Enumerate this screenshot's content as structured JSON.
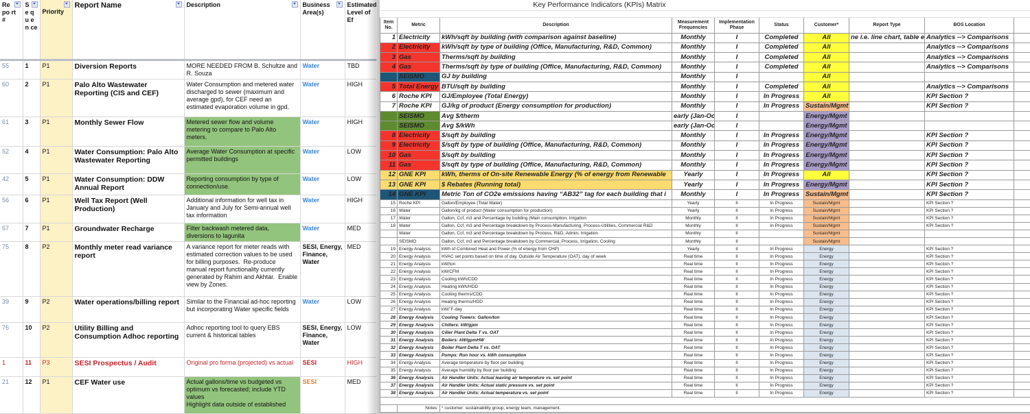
{
  "left": {
    "headers": [
      "Re po rt #",
      "S e q u e n ce",
      "Priority",
      "Report Name",
      "Description",
      "Business Area(s)",
      "Estimated Level of Ef"
    ],
    "rows": [
      {
        "num": "55",
        "seq": "1",
        "priority": "P1",
        "name": "Diversion Reports",
        "desc": "MORE NEEDED FROM B. Schultze and R. Souza",
        "biz": "Water",
        "effort": "TBD",
        "green": false,
        "red": false,
        "bizBold": false
      },
      {
        "num": "60",
        "seq": "2",
        "priority": "P1",
        "name": "Palo Alto Wastewater Reporting (CIS and CEF)",
        "desc": "Water Consumption and metered water discharged to sewer (maximum and average gpd), for CEF need an estimated evaporation volume in gpd.",
        "biz": "Water",
        "effort": "HIGH",
        "green": false,
        "red": false,
        "bizBold": false
      },
      {
        "num": "61",
        "seq": "3",
        "priority": "P1",
        "name": "Monthly Sewer Flow",
        "desc": "Metered sewer flow and volume metering to compare to Palo Alto meters.",
        "biz": "Water",
        "effort": "HIGH",
        "green": true,
        "red": false,
        "bizBold": false
      },
      {
        "num": "52",
        "seq": "4",
        "priority": "P1",
        "name": "Water Consumption: Palo Alto Wastewater Reporting",
        "desc": "Average Water Consumption at specific permitted buildings",
        "biz": "Water",
        "effort": "LOW",
        "green": true,
        "red": false,
        "bizBold": false
      },
      {
        "num": "42",
        "seq": "5",
        "priority": "P1",
        "name": "Water Consumption: DDW Annual Report",
        "desc": "Reporting consumption by type of connection/use.",
        "biz": "Water",
        "effort": "LOW",
        "green": true,
        "red": false,
        "bizBold": false
      },
      {
        "num": "56",
        "seq": "6",
        "priority": "P1",
        "name": "Well Tax Report (Well Production)",
        "desc": "Additional information for well tax in January and July for Semi-annual well tax information",
        "biz": "Water",
        "effort": "HIGH",
        "green": false,
        "red": false,
        "bizBold": false
      },
      {
        "num": "57",
        "seq": "7",
        "priority": "P1",
        "name": "Groundwater Recharge",
        "desc": "Filter backwash metered data, diversions to lagunita",
        "biz": "Water",
        "effort": "MED",
        "green": true,
        "red": false,
        "bizBold": false
      },
      {
        "num": "75",
        "seq": "8",
        "priority": "P2",
        "name": "Monthly meter read variance report",
        "desc": "A variance report for meter reads with estimated correction values to be used for billing purposes.  Re-produce manual report functionality currently generated by Rahim and Akhtar.  Enable view by Zones.",
        "biz": "SESI, Energy, Finance, Water",
        "effort": "MED",
        "green": false,
        "red": false,
        "bizBold": true
      },
      {
        "num": "39",
        "seq": "9",
        "priority": "P2",
        "name": "Water operations/billing report",
        "desc": "Similar to the Financial ad-hoc reporting but incorporating Water specific fields",
        "biz": "Water",
        "effort": "LOW",
        "green": false,
        "red": false,
        "bizBold": false
      },
      {
        "num": "76",
        "seq": "10",
        "priority": "P2",
        "name": "Utility Billing and Consumption Adhoc reporting",
        "desc": "Adhoc reporting tool to query EBS current & historical tables",
        "biz": "SESI, Energy, Finance, Water",
        "effort": "LOW",
        "green": false,
        "red": false,
        "bizBold": true
      },
      {
        "num": "1",
        "seq": "11",
        "priority": "P3",
        "name": "SESI Prospectus / Audit",
        "desc": "Original pro forma (projected) vs actual",
        "biz": "SESI",
        "effort": "HIGH",
        "green": false,
        "red": true,
        "bizBold": false
      },
      {
        "num": "21",
        "seq": "12",
        "priority": "P1",
        "name": "CEF Water use",
        "desc": "Actual gallons/time vs budgeted vs optimum vs forecasted; include YTD values\nHighlight data outside of established",
        "biz": "SESI",
        "effort": "MED",
        "green": true,
        "red": false,
        "bizBold": false,
        "bizColor": "#f07a2a"
      }
    ]
  },
  "right": {
    "title": "Key Performance Indicators (KPIs) Matrix",
    "headers": [
      "Item No.",
      "Metric",
      "Description",
      "Measurement Frequencies",
      "Implementation Phase",
      "Status",
      "Customer*",
      "Report Type",
      "BOS Location"
    ],
    "colors": {
      "red": "#f4352d",
      "teal": "#1e5677",
      "green": "#5f8b30",
      "yellow": "#fcdc70",
      "All": "#ffff3c",
      "Sustain/Mgmt": "#f8bd8c",
      "Energy/Mgmt": "#a89bc7",
      "Energy": "#dbe5f0"
    },
    "rows": [
      {
        "no": "1",
        "metric": "Electricity",
        "desc": "kWh/sqft  by building (with comparison against baseline)",
        "freq": "Monthly",
        "phase": "I",
        "status": "Completed",
        "customer": "All",
        "rtype": "ne i.e. line chart, table e",
        "bos": "Analytics --> Comparisons",
        "fill": "",
        "size": "big"
      },
      {
        "no": "2",
        "metric": "Electricity",
        "desc": "kWh/sqft by type of building (Office, Manufacturing, R&D, Common)",
        "freq": "Monthly",
        "phase": "I",
        "status": "Completed",
        "customer": "All",
        "rtype": "",
        "bos": "Analytics --> Comparisons",
        "fill": "red",
        "size": "big"
      },
      {
        "no": "3",
        "metric": "Gas",
        "desc": "Therms/sqft by building",
        "freq": "Monthly",
        "phase": "I",
        "status": "Completed",
        "customer": "All",
        "rtype": "",
        "bos": "Analytics --> Comparisons",
        "fill": "red",
        "size": "big"
      },
      {
        "no": "4",
        "metric": "Gas",
        "desc": "Therms/sqft by type of building  (Office, Manufacturing, R&D, Common)",
        "freq": "Monthly",
        "phase": "I",
        "status": "Completed",
        "customer": "All",
        "rtype": "",
        "bos": "Analytics --> Comparisons",
        "fill": "red",
        "size": "big"
      },
      {
        "no": "",
        "metric": "SEISMO",
        "desc": "GJ by building",
        "freq": "Monthly",
        "phase": "I",
        "status": "",
        "customer": "All",
        "rtype": "",
        "bos": "",
        "fill": "teal",
        "size": "big"
      },
      {
        "no": "5",
        "metric": "Total Energy",
        "desc": "BTU/sqft by building",
        "freq": "Monthly",
        "phase": "I",
        "status": "Completed",
        "customer": "All",
        "rtype": "",
        "bos": "Analytics --> Comparisons",
        "fill": "red",
        "size": "big"
      },
      {
        "no": "6",
        "metric": "Roche KPI",
        "desc": "GJ/Employee (Total Energy)",
        "freq": "Monthly",
        "phase": "I",
        "status": "In Progress",
        "customer": "All",
        "rtype": "",
        "bos": "KPI Section ?",
        "fill": "",
        "size": "big"
      },
      {
        "no": "7",
        "metric": "Roche KPI",
        "desc": "GJ/kg of product (Energy consumption for production)",
        "freq": "Monthly",
        "phase": "I",
        "status": "In Progress",
        "customer": "Sustain/Mgmt",
        "rtype": "",
        "bos": "KPI Section ?",
        "fill": "",
        "size": "big"
      },
      {
        "no": "",
        "metric": "SEISMO",
        "desc": "Avg $/therm",
        "freq": "early (Jan-Oc",
        "phase": "I",
        "status": "",
        "customer": "Energy/Mgmt",
        "rtype": "",
        "bos": "",
        "fill": "green",
        "size": "big"
      },
      {
        "no": "",
        "metric": "SEISMO",
        "desc": "Avg $/kWh",
        "freq": "early (Jan-Oc",
        "phase": "I",
        "status": "",
        "customer": "Energy/Mgmt",
        "rtype": "",
        "bos": "",
        "fill": "green",
        "size": "big"
      },
      {
        "no": "8",
        "metric": "Electricity",
        "desc": "$/sqft by building",
        "freq": "Monthly",
        "phase": "I",
        "status": "In Progress",
        "customer": "Energy/Mgmt",
        "rtype": "",
        "bos": "KPI Section ?",
        "fill": "red",
        "size": "big"
      },
      {
        "no": "9",
        "metric": "Electricity",
        "desc": "$/sqft by type of building  (Office, Manufacturing, R&D, Common)",
        "freq": "Monthly",
        "phase": "I",
        "status": "In Progress",
        "customer": "Energy/Mgmt",
        "rtype": "",
        "bos": "KPI Section ?",
        "fill": "red",
        "size": "big"
      },
      {
        "no": "10",
        "metric": "Gas",
        "desc": "$/sqft by building",
        "freq": "Monthly",
        "phase": "I",
        "status": "In Progress",
        "customer": "Energy/Mgmt",
        "rtype": "",
        "bos": "KPI Section ?",
        "fill": "red",
        "size": "big"
      },
      {
        "no": "11",
        "metric": "Gas",
        "desc": "$/sqft by type of building  (Office, Manufacturing, R&D, Common)",
        "freq": "Monthly",
        "phase": "I",
        "status": "In Progress",
        "customer": "Energy/Mgmt",
        "rtype": "",
        "bos": "KPI Section ?",
        "fill": "red",
        "size": "big"
      },
      {
        "no": "12",
        "metric": "GNE KPI",
        "desc": "kWh, therms  of On-site Renewable Energy (% of energy from Renewable",
        "freq": "Yearly",
        "phase": "I",
        "status": "In Progress",
        "customer": "All",
        "rtype": "",
        "bos": "KPI Section ?",
        "fill": "yellow",
        "size": "big"
      },
      {
        "no": "13",
        "metric": "GNE KPI",
        "desc": "$ Rebates (Running total)",
        "freq": "Yearly",
        "phase": "I",
        "status": "In Progress",
        "customer": "Energy/Mgmt",
        "rtype": "",
        "bos": "KPI Section ?",
        "fill": "yellow",
        "size": "big"
      },
      {
        "no": "14",
        "metric": "GNE KPI",
        "desc": "Metric Ton of CO2e emissions having “AB32” tag for each building that i",
        "freq": "Monthly",
        "phase": "I",
        "status": "In Progress",
        "customer": "Sustain/Mgmt",
        "rtype": "",
        "bos": "KPI Section ?",
        "fill": "teal",
        "size": "big"
      },
      {
        "no": "15",
        "metric": "Roche KPI",
        "desc": "Gallon/Employee (Total Water)",
        "freq": "Yearly",
        "phase": "II",
        "status": "In Progress",
        "customer": "Sustain/Mgmt",
        "rtype": "",
        "bos": "KPI Section ?",
        "fill": "",
        "size": "small"
      },
      {
        "no": "16",
        "metric": "Water",
        "desc": "Gallon/kg of product (Water consumption for production)",
        "freq": "Yearly",
        "phase": "II",
        "status": "In Progress",
        "customer": "Sustain/Mgmt",
        "rtype": "",
        "bos": "KPI Section ?",
        "fill": "",
        "size": "small"
      },
      {
        "no": "17",
        "metric": "Water",
        "desc": "Gallon, Ccf, m3 and Percentage by building (Main consumption, Irrigation",
        "freq": "Monthly",
        "phase": "II",
        "status": "In Progress",
        "customer": "Sustain/Mgmt",
        "rtype": "",
        "bos": "KPI Section ?",
        "fill": "",
        "size": "small"
      },
      {
        "no": "18",
        "metric": "Water",
        "desc": "Gallon, Ccf, m3 and Percentage breakdown by Process-Manufacturing, Process-Utilities, Commercial R&D",
        "freq": "Monthly",
        "phase": "II",
        "status": "In Progress",
        "customer": "Sustain/Mgmt",
        "rtype": "",
        "bos": "KPI Section ?",
        "fill": "",
        "size": "small"
      },
      {
        "no": "",
        "metric": "Water",
        "desc": "Gallon, Ccf, m3 and Percentage breakdown by Process, R&D, Admin, Irrigation",
        "freq": "Monthly",
        "phase": "II",
        "status": "",
        "customer": "Sustain/Mgmt",
        "rtype": "",
        "bos": "",
        "fill": "",
        "size": "small"
      },
      {
        "no": "",
        "metric": "SEISMO",
        "desc": "Gallon, Ccf, m3 and Percentage breakdown by Commercial, Process, Irrigation, Cooling",
        "freq": "Monthly",
        "phase": "II",
        "status": "",
        "customer": "Sustain/Mgmt",
        "rtype": "",
        "bos": "",
        "fill": "",
        "size": "small"
      },
      {
        "no": "19",
        "metric": "Energy Analysis",
        "desc": "kWh of Combined Heat and Power (% of energy from CHP)",
        "freq": "Yearly",
        "phase": "II",
        "status": "In Progress",
        "customer": "Energy",
        "rtype": "",
        "bos": "KPI Section ?",
        "fill": "",
        "size": "small"
      },
      {
        "no": "20",
        "metric": "Energy Analysis",
        "desc": "HVAC set points based on time of day, Outside Air Temperature (OAT), day of week",
        "freq": "Real time",
        "phase": "II",
        "status": "In Progress",
        "customer": "Energy",
        "rtype": "",
        "bos": "KPI Section ?",
        "fill": "",
        "size": "small"
      },
      {
        "no": "21",
        "metric": "Energy Analysis",
        "desc": "kW/ton",
        "freq": "Real time",
        "phase": "II",
        "status": "In Progress",
        "customer": "Energy",
        "rtype": "",
        "bos": "KPI Section ?",
        "fill": "",
        "size": "small"
      },
      {
        "no": "22",
        "metric": "Energy Analysis",
        "desc": "kW/CFM",
        "freq": "Real time",
        "phase": "II",
        "status": "In Progress",
        "customer": "Energy",
        "rtype": "",
        "bos": "KPI Section ?",
        "fill": "",
        "size": "small"
      },
      {
        "no": "23",
        "metric": "Energy Analysis",
        "desc": "Cooling kWh/CDD",
        "freq": "Real time",
        "phase": "II",
        "status": "In Progress",
        "customer": "Energy",
        "rtype": "",
        "bos": "KPI Section ?",
        "fill": "",
        "size": "small"
      },
      {
        "no": "24",
        "metric": "Energy Analysis",
        "desc": "Heating kWh/HDD",
        "freq": "Real time",
        "phase": "II",
        "status": "In Progress",
        "customer": "Energy",
        "rtype": "",
        "bos": "KPI Section ?",
        "fill": "",
        "size": "small"
      },
      {
        "no": "25",
        "metric": "Energy Analysis",
        "desc": "Cooling therms/CDD",
        "freq": "Real time",
        "phase": "II",
        "status": "In Progress",
        "customer": "Energy",
        "rtype": "",
        "bos": "KPI Section ?",
        "fill": "",
        "size": "small"
      },
      {
        "no": "26",
        "metric": "Energy Analysis",
        "desc": "Heating therms/HDD",
        "freq": "Real time",
        "phase": "II",
        "status": "In Progress",
        "customer": "Energy",
        "rtype": "",
        "bos": "KPI Section ?",
        "fill": "",
        "size": "small"
      },
      {
        "no": "27",
        "metric": "Energy Analysis",
        "desc": "kW/˚F-day",
        "freq": "Real time",
        "phase": "II",
        "status": "In Progress",
        "customer": "Energy",
        "rtype": "",
        "bos": "KPI Section ?",
        "fill": "",
        "size": "small"
      },
      {
        "no": "28",
        "metric": "Energy Analysis",
        "desc": "Cooling Towers: Gallon/ton",
        "freq": "Real time",
        "phase": "II",
        "status": "In Progress",
        "customer": "Energy",
        "rtype": "",
        "bos": "KPI Section ?",
        "fill": "",
        "size": "small orange"
      },
      {
        "no": "29",
        "metric": "Energy Analysis",
        "desc": "Chillers: kW/gpm",
        "freq": "Real time",
        "phase": "II",
        "status": "In Progress",
        "customer": "Energy",
        "rtype": "",
        "bos": "KPI Section ?",
        "fill": "",
        "size": "small orange"
      },
      {
        "no": "30",
        "metric": "Energy Analysis",
        "desc": "Ciller Plant Delta T vs. OAT",
        "freq": "Real time",
        "phase": "II",
        "status": "In Progress",
        "customer": "Energy",
        "rtype": "",
        "bos": "KPI Section ?",
        "fill": "",
        "size": "small orange"
      },
      {
        "no": "31",
        "metric": "Energy Analysis",
        "desc": "Boilers: kW/gpmHW",
        "freq": "Real time",
        "phase": "II",
        "status": "In Progress",
        "customer": "Energy",
        "rtype": "",
        "bos": "KPI Section ?",
        "fill": "",
        "size": "small orange"
      },
      {
        "no": "32",
        "metric": "Energy Analysis",
        "desc": "Boiler Plant Delta T vs. OAT",
        "freq": "Real time",
        "phase": "II",
        "status": "In Progress",
        "customer": "Energy",
        "rtype": "",
        "bos": "KPI Section ?",
        "fill": "",
        "size": "small orange"
      },
      {
        "no": "33",
        "metric": "Energy Analysis",
        "desc": "Pumps: Run hour vs. kWh consumption",
        "freq": "Real time",
        "phase": "II",
        "status": "In Progress",
        "customer": "Energy",
        "rtype": "",
        "bos": "KPI Section ?",
        "fill": "",
        "size": "small orange"
      },
      {
        "no": "34",
        "metric": "Energy Analysis",
        "desc": "Average temperature  by floor per building",
        "freq": "Real time",
        "phase": "II",
        "status": "In Progress",
        "customer": "Energy",
        "rtype": "",
        "bos": "KPI Section ?",
        "fill": "",
        "size": "small"
      },
      {
        "no": "35",
        "metric": "Energy Analysis",
        "desc": "Average humidity by floor per building",
        "freq": "Real time",
        "phase": "II",
        "status": "In Progress",
        "customer": "Energy",
        "rtype": "",
        "bos": "KPI Section ?",
        "fill": "",
        "size": "small"
      },
      {
        "no": "36",
        "metric": "Energy Analysis",
        "desc": "Air Handler Units: Actual leaving air temperature vs. set point",
        "freq": "Real time",
        "phase": "II",
        "status": "In Progress",
        "customer": "Energy",
        "rtype": "",
        "bos": "KPI Section ?",
        "fill": "",
        "size": "small orange"
      },
      {
        "no": "37",
        "metric": "Energy Analysis",
        "desc": "Air Handler Units: Actual static pressure vs. set point",
        "freq": "Real time",
        "phase": "II",
        "status": "In Progress",
        "customer": "Energy",
        "rtype": "",
        "bos": "KPI Section ?",
        "fill": "",
        "size": "small orange"
      },
      {
        "no": "38",
        "metric": "Energy Analysis",
        "desc": "Air Handler Units: Actual temperature vs. set point",
        "freq": "Real time",
        "phase": "II",
        "status": "In Progress",
        "customer": "Energy",
        "rtype": "",
        "bos": "KPI Section ?",
        "fill": "",
        "size": "small orange"
      }
    ],
    "notes_label": "Notes:",
    "notes_text": "* customer:  sustainability group, energy team, management."
  }
}
